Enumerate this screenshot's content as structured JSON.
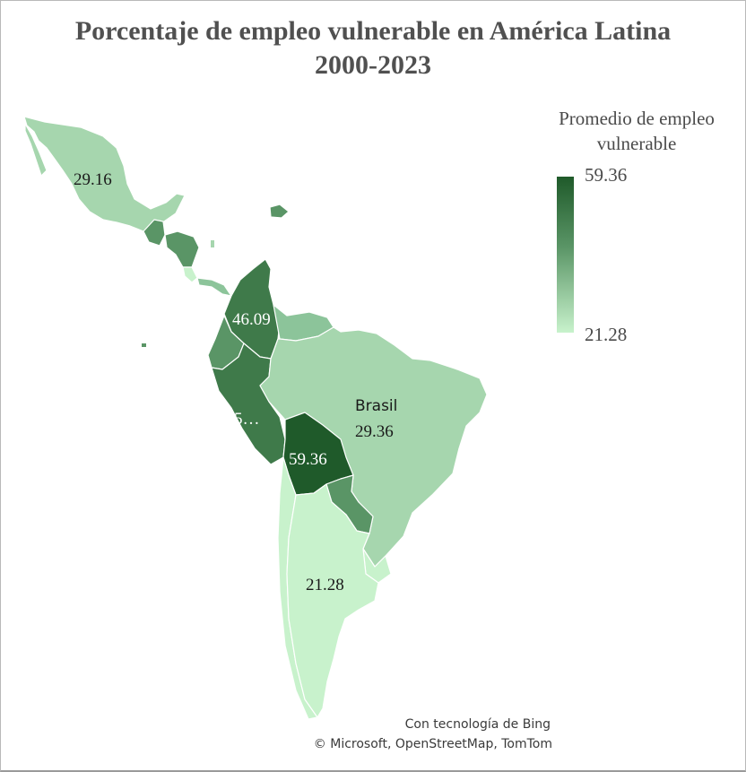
{
  "title": {
    "line1": "Porcentaje de empleo vulnerable en América Latina",
    "line2": "2000-2023"
  },
  "legend": {
    "title_line1": "Promedio de empleo",
    "title_line2": "vulnerable",
    "max": "59.36",
    "min": "21.28",
    "color_max": "#1f5a2a",
    "color_min": "#c8f2cc"
  },
  "map_labels": {
    "mexico": "29.16",
    "colombia": "46.09",
    "peru": "5…",
    "brasil_name": "Brasil",
    "brasil": "29.36",
    "bolivia": "59.36",
    "argentina": "21.28"
  },
  "credits": {
    "line1": "Con tecnología de Bing",
    "line2": "© Microsoft, OpenStreetMap, TomTom"
  },
  "colors": {
    "background": "#ffffff",
    "dark": "#1f5a2a",
    "mid_dark": "#3f7a4a",
    "mid": "#5a9566",
    "light_mid": "#8cc49a",
    "light": "#a6d6ae",
    "lightest": "#c8f2cc"
  }
}
